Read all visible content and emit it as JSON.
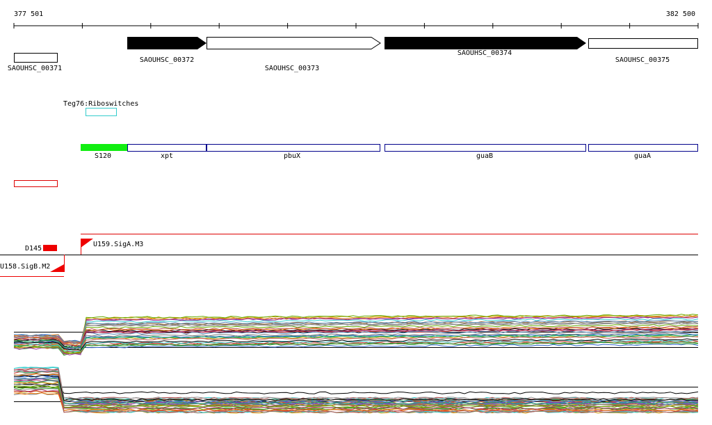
{
  "ruler": {
    "start": "377 501",
    "end": "382 500"
  },
  "genes": [
    "SAOUHSC_00371",
    "SAOUHSC_00372",
    "SAOUHSC_00373",
    "SAOUHSC_00374",
    "SAOUHSC_00375"
  ],
  "riboswitch": "Teg76:Riboswitches",
  "operons": [
    "S120",
    "xpt",
    "pbuX",
    "guaB",
    "guaA"
  ],
  "features": {
    "deletion": "D145",
    "promoter_a": "U159.SigA.M3",
    "promoter_b": "U158.SigB.M2"
  }
}
